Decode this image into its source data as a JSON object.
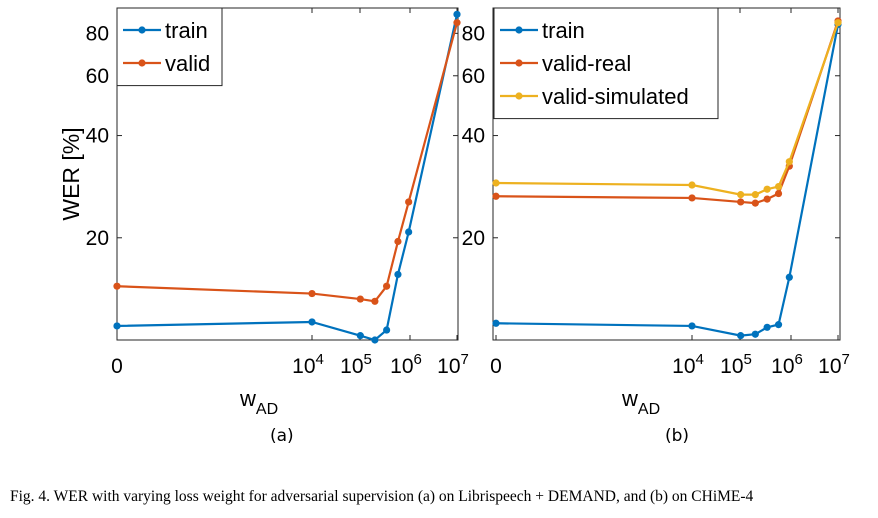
{
  "figure": {
    "caption": "Fig. 4.  WER with varying loss weight for adversarial supervision (a) on Librispeech + DEMAND, and (b) on CHiME-4",
    "panel_labels": [
      "(a)",
      "(b)"
    ],
    "colors": {
      "blue": "#0072BD",
      "red": "#D95319",
      "yellow": "#EDB120"
    }
  },
  "chart_data": [
    {
      "type": "line",
      "panel": "(a)",
      "ylabel": "WER [%]",
      "xlabel_base": "w",
      "xlabel_sub": "AD",
      "x_scale": "log (0 shown at left edge)",
      "y_scale": "log",
      "ylim": [
        10,
        95
      ],
      "y_ticks": [
        20,
        40,
        60,
        80
      ],
      "x_ticks": [
        "0",
        "10^4",
        "10^5",
        "10^6",
        "10^7"
      ],
      "grid": false,
      "legend_position": "top-left",
      "x": [
        0,
        10000,
        100000,
        200000,
        350000,
        600000,
        1000000,
        10000000
      ],
      "series": [
        {
          "name": "train",
          "color": "#0072BD",
          "values": [
            11.0,
            11.3,
            10.3,
            10.0,
            10.7,
            15.6,
            20.8,
            91.0
          ]
        },
        {
          "name": "valid",
          "color": "#D95319",
          "values": [
            14.4,
            13.7,
            13.2,
            13.0,
            14.4,
            19.5,
            25.5,
            86.0
          ]
        }
      ]
    },
    {
      "type": "line",
      "panel": "(b)",
      "ylabel": "",
      "xlabel_base": "w",
      "xlabel_sub": "AD",
      "x_scale": "log (0 shown at left edge)",
      "y_scale": "log",
      "ylim": [
        10,
        95
      ],
      "y_ticks": [
        20,
        40,
        60,
        80
      ],
      "x_ticks": [
        "0",
        "10^4",
        "10^5",
        "10^6",
        "10^7"
      ],
      "grid": false,
      "legend_position": "top-left",
      "x": [
        0,
        10000,
        100000,
        200000,
        350000,
        600000,
        1000000,
        10000000
      ],
      "series": [
        {
          "name": "train",
          "color": "#0072BD",
          "values": [
            11.2,
            11.0,
            10.3,
            10.4,
            10.9,
            11.1,
            15.3,
            85.0
          ]
        },
        {
          "name": "valid-real",
          "color": "#D95319",
          "values": [
            26.5,
            26.2,
            25.5,
            25.3,
            26.0,
            27.0,
            32.5,
            87.0
          ]
        },
        {
          "name": "valid-simulated",
          "color": "#EDB120",
          "values": [
            29.0,
            28.6,
            26.8,
            26.8,
            27.8,
            28.3,
            33.5,
            86.0
          ]
        }
      ]
    }
  ]
}
